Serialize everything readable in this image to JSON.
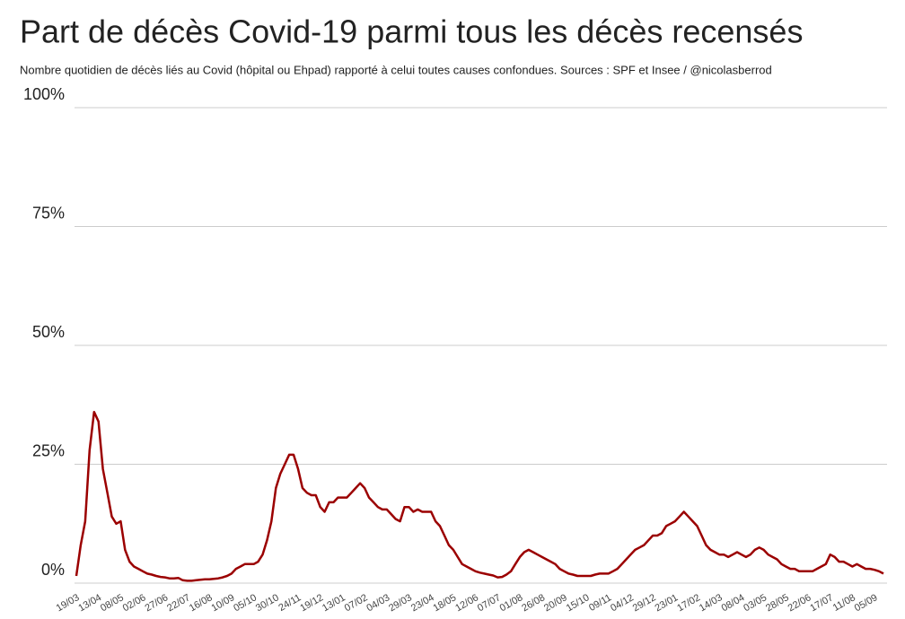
{
  "chart_data": {
    "type": "line",
    "title": "Part de décès Covid-19 parmi tous les décès recensés",
    "subtitle": "Nombre quotidien de décès liés au Covid (hôpital ou Ehpad) rapporté à celui toutes causes confondues. Sources : SPF et Insee / @nicolasberrod",
    "categories": [
      "19/03",
      null,
      null,
      null,
      null,
      "13/04",
      null,
      null,
      null,
      null,
      "08/05",
      null,
      null,
      null,
      null,
      "02/06",
      null,
      null,
      null,
      null,
      "27/06",
      null,
      null,
      null,
      null,
      "22/07",
      null,
      null,
      null,
      null,
      "16/08",
      null,
      null,
      null,
      null,
      "10/09",
      null,
      null,
      null,
      null,
      "05/10",
      null,
      null,
      null,
      null,
      "30/10",
      null,
      null,
      null,
      null,
      "24/11",
      null,
      null,
      null,
      null,
      "19/12",
      null,
      null,
      null,
      null,
      "13/01",
      null,
      null,
      null,
      null,
      "07/02",
      null,
      null,
      null,
      null,
      "04/03",
      null,
      null,
      null,
      null,
      "29/03",
      null,
      null,
      null,
      null,
      "23/04",
      null,
      null,
      null,
      null,
      "18/05",
      null,
      null,
      null,
      null,
      "12/06",
      null,
      null,
      null,
      null,
      "07/07",
      null,
      null,
      null,
      null,
      "01/08",
      null,
      null,
      null,
      null,
      "26/08",
      null,
      null,
      null,
      null,
      "20/09",
      null,
      null,
      null,
      null,
      "15/10",
      null,
      null,
      null,
      null,
      "09/11",
      null,
      null,
      null,
      null,
      "04/12",
      null,
      null,
      null,
      null,
      "29/12",
      null,
      null,
      null,
      null,
      "23/01",
      null,
      null,
      null,
      null,
      "17/02",
      null,
      null,
      null,
      null,
      "14/03",
      null,
      null,
      null,
      null,
      "08/04",
      null,
      null,
      null,
      null,
      "03/05",
      null,
      null,
      null,
      null,
      "28/05",
      null,
      null,
      null,
      null,
      "22/06",
      null,
      null,
      null,
      null,
      "17/07",
      null,
      null,
      null,
      null,
      "11/08",
      null,
      null,
      null,
      null,
      "05/09",
      null,
      null
    ],
    "series": [
      {
        "name": "Part de décès Covid-19",
        "color": "#9b0000",
        "values": [
          1.5,
          8,
          13,
          28,
          36,
          34,
          24,
          19,
          14,
          12.5,
          13,
          7,
          4.5,
          3.5,
          3,
          2.5,
          2,
          1.8,
          1.5,
          1.3,
          1.2,
          1,
          1,
          1.1,
          0.6,
          0.5,
          0.5,
          0.6,
          0.7,
          0.8,
          0.8,
          0.9,
          1,
          1.2,
          1.5,
          2,
          3,
          3.5,
          4,
          4,
          4,
          4.5,
          6,
          9,
          13,
          20,
          23,
          25,
          27,
          27,
          24,
          20,
          19,
          18.5,
          18.5,
          16,
          15,
          17,
          17,
          18,
          18,
          18,
          19,
          20,
          21,
          20,
          18,
          17,
          16,
          15.5,
          15.5,
          14.5,
          13.5,
          13,
          16,
          16,
          15,
          15.5,
          15,
          15,
          15,
          13,
          12,
          10,
          8,
          7,
          5.5,
          4,
          3.5,
          3,
          2.5,
          2.2,
          2,
          1.8,
          1.6,
          1.2,
          1.3,
          1.8,
          2.5,
          4,
          5.5,
          6.5,
          7,
          6.5,
          6,
          5.5,
          5,
          4.5,
          4,
          3,
          2.5,
          2,
          1.8,
          1.5,
          1.5,
          1.5,
          1.5,
          1.8,
          2,
          2,
          2,
          2.5,
          3,
          4,
          5,
          6,
          7,
          7.5,
          8,
          9,
          10,
          10,
          10.5,
          12,
          12.5,
          13,
          14,
          15,
          14,
          13,
          12,
          10,
          8,
          7,
          6.5,
          6,
          6,
          5.5,
          6,
          6.5,
          6,
          5.5,
          6,
          7,
          7.5,
          7,
          6,
          5.5,
          5,
          4,
          3.5,
          3,
          3,
          2.5,
          2.5,
          2.5,
          2.5,
          3,
          3.5,
          4,
          6,
          5.5,
          4.5,
          4.5,
          4,
          3.5,
          4,
          3.5,
          3,
          3,
          2.8,
          2.5,
          2
        ]
      }
    ],
    "ylim": [
      0,
      100
    ],
    "yticks": [
      {
        "value": 0,
        "label": "0%"
      },
      {
        "value": 25,
        "label": "25%"
      },
      {
        "value": 50,
        "label": "50%"
      },
      {
        "value": 75,
        "label": "75%"
      },
      {
        "value": 100,
        "label": "100%"
      }
    ],
    "grid": true
  }
}
